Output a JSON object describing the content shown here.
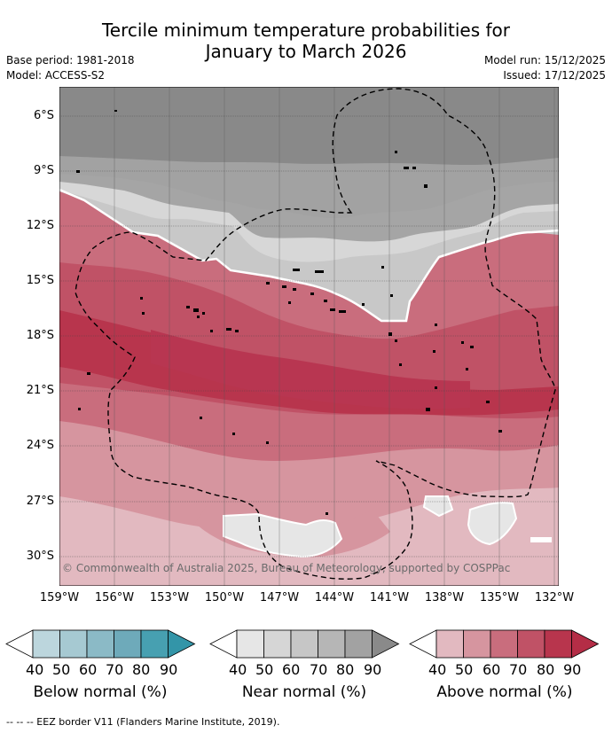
{
  "title_line1": "Tercile minimum temperature probabilities for",
  "title_line2": "January to March 2026",
  "base_period": "Base period: 1981-2018",
  "model": "Model: ACCESS-S2",
  "model_run": "Model run: 15/12/2025",
  "issued": "Issued: 17/12/2025",
  "credit": "© Commonwealth of Australia 2025, Bureau of Meteorology, supported by COSPPac",
  "lat_labels": [
    "6°S",
    "9°S",
    "12°S",
    "15°S",
    "18°S",
    "21°S",
    "24°S",
    "27°S",
    "30°S"
  ],
  "lon_labels": [
    "159°W",
    "156°W",
    "153°W",
    "150°W",
    "147°W",
    "144°W",
    "141°W",
    "138°W",
    "135°W",
    "132°W"
  ],
  "legends": [
    {
      "title": "Below normal (%)",
      "ticks": [
        "40",
        "50",
        "60",
        "70",
        "80",
        "90"
      ],
      "colors": [
        "#ffffff",
        "#bcd6dd",
        "#a6c9d2",
        "#8bbac6",
        "#6eaaba",
        "#47a0b1",
        "#3395a8"
      ]
    },
    {
      "title": "Near normal (%)",
      "ticks": [
        "40",
        "50",
        "60",
        "70",
        "80",
        "90"
      ],
      "colors": [
        "#ffffff",
        "#e6e6e6",
        "#d6d6d6",
        "#c6c6c6",
        "#b6b6b6",
        "#a2a2a2",
        "#8a8a8a"
      ]
    },
    {
      "title": "Above normal (%)",
      "ticks": [
        "40",
        "50",
        "60",
        "70",
        "80",
        "90"
      ],
      "colors": [
        "#ffffff",
        "#e2b9c0",
        "#d6959f",
        "#c96d7d",
        "#c05266",
        "#b8354d",
        "#b42d46"
      ]
    }
  ],
  "footer": "-- -- -- EEZ border V11 (Flanders Marine Institute, 2019)."
}
